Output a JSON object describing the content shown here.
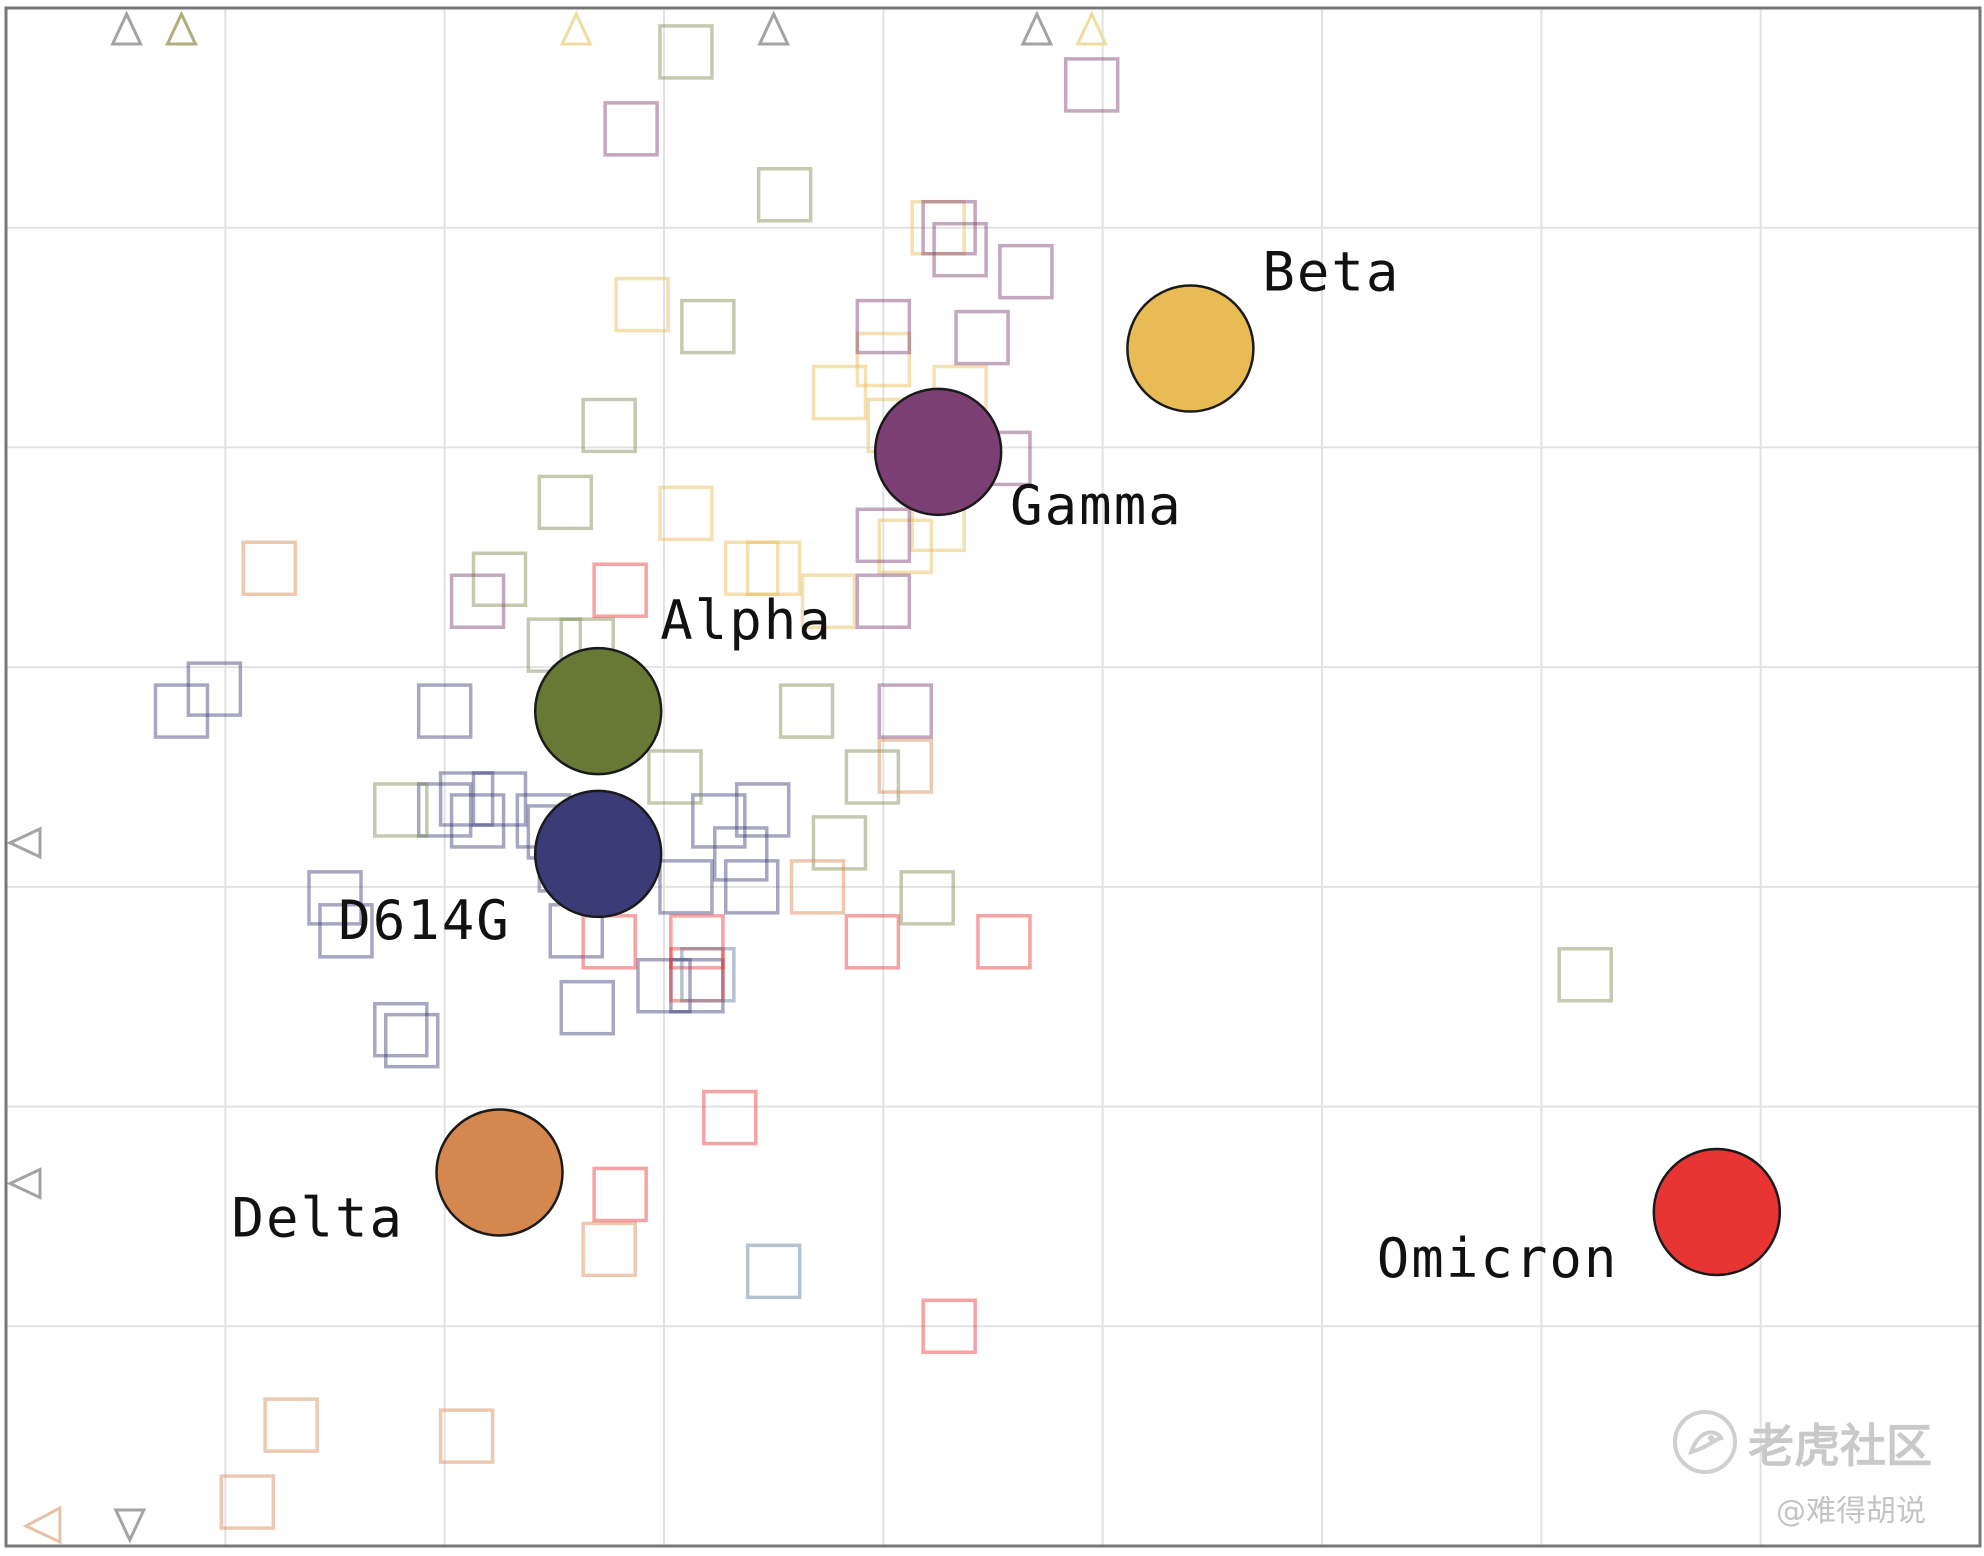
{
  "chart_data": {
    "type": "scatter",
    "title": "",
    "xlabel": "",
    "ylabel": "",
    "xlim": [
      0,
      9
    ],
    "ylim": [
      0,
      7
    ],
    "grid": true,
    "series": [
      {
        "name": "D614G",
        "color": "#3b3b78",
        "x": 2.7,
        "y": 3.15,
        "sera": [
          [
            0.8,
            3.8
          ],
          [
            0.95,
            3.9
          ],
          [
            1.5,
            2.95
          ],
          [
            1.55,
            2.8
          ],
          [
            1.8,
            2.35
          ],
          [
            1.85,
            2.3
          ],
          [
            2.0,
            3.8
          ],
          [
            2.0,
            3.35
          ],
          [
            2.1,
            3.4
          ],
          [
            2.15,
            3.3
          ],
          [
            2.25,
            3.4
          ],
          [
            2.45,
            3.3
          ],
          [
            2.5,
            3.25
          ],
          [
            2.55,
            3.1
          ],
          [
            2.6,
            2.8
          ],
          [
            2.65,
            2.45
          ],
          [
            3.0,
            2.55
          ],
          [
            3.15,
            2.55
          ],
          [
            3.1,
            3.0
          ],
          [
            3.25,
            3.3
          ],
          [
            3.35,
            3.15
          ],
          [
            3.4,
            3.0
          ],
          [
            3.45,
            3.35
          ]
        ]
      },
      {
        "name": "Alpha",
        "color": "#677935",
        "x": 2.7,
        "y": 3.8,
        "sera": [
          [
            1.8,
            3.35
          ],
          [
            2.5,
            4.1
          ],
          [
            2.65,
            4.1
          ],
          [
            2.55,
            4.75
          ],
          [
            2.75,
            5.1
          ],
          [
            3.2,
            5.55
          ],
          [
            3.55,
            6.15
          ],
          [
            3.1,
            6.8
          ],
          [
            3.65,
            3.8
          ],
          [
            3.95,
            3.5
          ],
          [
            3.8,
            3.2
          ],
          [
            4.2,
            2.95
          ],
          [
            7.2,
            2.6
          ],
          [
            2.25,
            4.4
          ],
          [
            3.05,
            3.5
          ]
        ]
      },
      {
        "name": "Beta",
        "color": "#e9bb54",
        "x": 5.4,
        "y": 5.45,
        "sera": [
          [
            2.9,
            5.65
          ],
          [
            3.1,
            4.7
          ],
          [
            3.4,
            4.45
          ],
          [
            3.5,
            4.45
          ],
          [
            3.75,
            4.3
          ],
          [
            3.8,
            5.25
          ],
          [
            4.0,
            5.4
          ],
          [
            4.05,
            5.1
          ],
          [
            4.1,
            4.55
          ],
          [
            4.25,
            4.65
          ],
          [
            4.25,
            6.0
          ],
          [
            4.35,
            5.25
          ]
        ]
      },
      {
        "name": "Gamma",
        "color": "#7b3f73",
        "x": 4.25,
        "y": 4.98,
        "sera": [
          [
            2.85,
            6.45
          ],
          [
            2.15,
            4.3
          ],
          [
            4.0,
            4.6
          ],
          [
            4.0,
            4.3
          ],
          [
            4.0,
            5.55
          ],
          [
            4.1,
            3.8
          ],
          [
            4.3,
            6.0
          ],
          [
            4.35,
            5.9
          ],
          [
            4.45,
            5.5
          ],
          [
            4.65,
            5.8
          ],
          [
            4.95,
            6.65
          ],
          [
            4.55,
            4.95
          ]
        ]
      },
      {
        "name": "Delta",
        "color": "#d4874f",
        "x": 2.25,
        "y": 1.7,
        "sera": [
          [
            1.2,
            4.45
          ],
          [
            2.75,
            1.35
          ],
          [
            4.1,
            3.55
          ],
          [
            3.7,
            3.0
          ],
          [
            1.3,
            0.55
          ],
          [
            2.1,
            0.5
          ],
          [
            1.1,
            0.2
          ]
        ]
      },
      {
        "name": "Omicron",
        "color": "#e93434",
        "x": 7.8,
        "y": 1.52,
        "sera": [
          [
            2.8,
            4.35
          ],
          [
            2.75,
            2.75
          ],
          [
            3.15,
            2.75
          ],
          [
            3.3,
            1.95
          ],
          [
            2.8,
            1.6
          ],
          [
            3.95,
            2.75
          ],
          [
            4.55,
            2.75
          ],
          [
            4.3,
            1.0
          ],
          [
            3.15,
            2.6
          ]
        ]
      },
      {
        "name": "",
        "color": "#5e7896",
        "sera": [
          [
            3.2,
            2.6
          ],
          [
            3.5,
            1.25
          ]
        ]
      }
    ],
    "off_scale_markers": {
      "top": [
        [
          0.55,
          "#a3a3a3"
        ],
        [
          0.8,
          "#b3ad7d"
        ],
        [
          2.6,
          "#eedd9f"
        ],
        [
          3.5,
          "#a3a3a3"
        ],
        [
          4.7,
          "#a3a3a3"
        ],
        [
          4.95,
          "#eedd9f"
        ]
      ],
      "left": [
        [
          3.2,
          "#a3a3a3"
        ],
        [
          1.65,
          "#a3a3a3"
        ]
      ],
      "bottom_left": [
        [
          0.1,
          "#e6c3a6"
        ],
        [
          0.3,
          "#a3a3a3"
        ]
      ]
    }
  },
  "watermark": {
    "brand": "老虎社区",
    "handle": "@难得胡说"
  }
}
